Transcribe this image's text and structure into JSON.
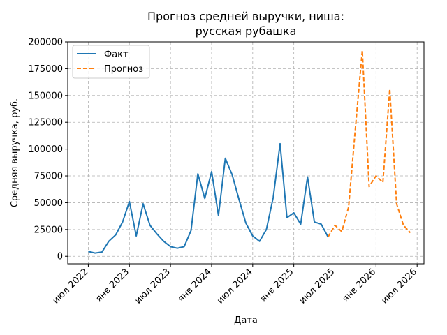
{
  "chart_data": {
    "type": "line",
    "title_lines": [
      "Прогноз средней выручки, ниша:",
      "русская рубашка"
    ],
    "xlabel": "Дата",
    "ylabel": "Средняя выручка, руб.",
    "x_ticks": [
      "2022-07",
      "2023-01",
      "2023-07",
      "2024-01",
      "2024-07",
      "2025-01",
      "2025-07",
      "2026-01",
      "2026-07"
    ],
    "x_tick_labels": [
      "июл 2022",
      "янв 2023",
      "июл 2023",
      "янв 2024",
      "июл 2024",
      "янв 2025",
      "июл 2025",
      "янв 2026",
      "июл 2026"
    ],
    "xlim": [
      "2022-04",
      "2026-08"
    ],
    "y_ticks": [
      0,
      25000,
      50000,
      75000,
      100000,
      125000,
      150000,
      175000,
      200000
    ],
    "y_tick_labels": [
      "0",
      "25000",
      "50000",
      "75000",
      "100000",
      "125000",
      "150000",
      "175000",
      "200000"
    ],
    "ylim": [
      -7000,
      200000
    ],
    "grid": true,
    "legend_position": "upper-left",
    "series": [
      {
        "name": "Факт",
        "color": "#1f77b4",
        "style": "solid",
        "x": [
          "2022-07",
          "2022-08",
          "2022-09",
          "2022-10",
          "2022-11",
          "2022-12",
          "2023-01",
          "2023-02",
          "2023-03",
          "2023-04",
          "2023-05",
          "2023-06",
          "2023-07",
          "2023-08",
          "2023-09",
          "2023-10",
          "2023-11",
          "2023-12",
          "2024-01",
          "2024-02",
          "2024-03",
          "2024-04",
          "2024-05",
          "2024-06",
          "2024-07",
          "2024-08",
          "2024-09",
          "2024-10",
          "2024-11",
          "2024-12",
          "2025-01",
          "2025-02",
          "2025-03",
          "2025-04",
          "2025-05",
          "2025-06"
        ],
        "values": [
          4500,
          3000,
          4000,
          14000,
          20000,
          32000,
          51000,
          19000,
          49000,
          29000,
          21000,
          14000,
          9000,
          7500,
          9000,
          24000,
          77000,
          54000,
          79000,
          38000,
          91500,
          76000,
          53000,
          31000,
          19000,
          14000,
          25000,
          55000,
          105000,
          36000,
          40500,
          30000,
          74000,
          32000,
          30000,
          18000
        ]
      },
      {
        "name": "Прогноз",
        "color": "#ff7f0e",
        "style": "dashed",
        "x": [
          "2025-06",
          "2025-07",
          "2025-08",
          "2025-09",
          "2025-10",
          "2025-11",
          "2025-12",
          "2026-01",
          "2026-02",
          "2026-03",
          "2026-04",
          "2026-05",
          "2026-06"
        ],
        "values": [
          18000,
          29000,
          23000,
          46000,
          120000,
          192000,
          65000,
          75000,
          69000,
          156000,
          49000,
          29000,
          22000
        ]
      }
    ]
  }
}
